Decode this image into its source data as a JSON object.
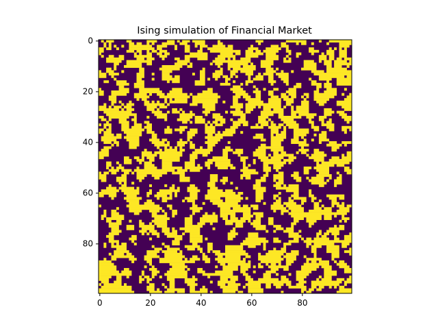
{
  "chart_data": {
    "type": "heatmap",
    "title": "Ising simulation of Financial Market",
    "xlabel": "",
    "ylabel": "",
    "grid_size": [
      100,
      100
    ],
    "value_states": [
      -1,
      1
    ],
    "colors": {
      "low": "#440154",
      "high": "#fde725",
      "axis": "#000000",
      "background": "#ffffff"
    },
    "colormap": "viridis",
    "grid": false,
    "legend": "none",
    "xlim": [
      -0.5,
      99.5
    ],
    "ylim": [
      99.5,
      -0.5
    ],
    "x_ticks": [
      0,
      20,
      40,
      60,
      80
    ],
    "y_ticks": [
      0,
      20,
      40,
      60,
      80
    ],
    "x_tick_labels": [
      "0",
      "20",
      "40",
      "60",
      "80"
    ],
    "y_tick_labels": [
      "0",
      "20",
      "40",
      "60",
      "80"
    ],
    "approx_fraction_high": 0.48
  }
}
